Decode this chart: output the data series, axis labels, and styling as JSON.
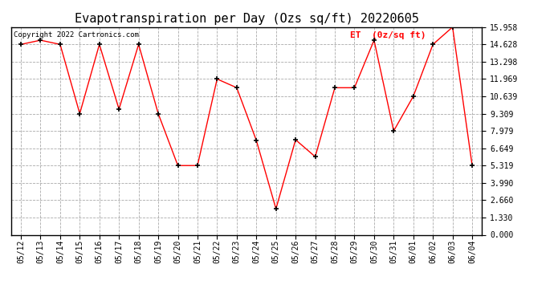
{
  "title": "Evapotranspiration per Day (Ozs sq/ft) 20220605",
  "copyright": "Copyright 2022 Cartronics.com",
  "legend_label": "ET  (0z/sq ft)",
  "dates": [
    "05/12",
    "05/13",
    "05/14",
    "05/15",
    "05/16",
    "05/17",
    "05/18",
    "05/19",
    "05/20",
    "05/21",
    "05/22",
    "05/23",
    "05/24",
    "05/25",
    "05/26",
    "05/27",
    "05/28",
    "05/29",
    "05/30",
    "05/31",
    "06/01",
    "06/02",
    "06/03",
    "06/04"
  ],
  "values": [
    14.628,
    14.95,
    14.628,
    9.309,
    14.628,
    9.65,
    14.628,
    9.309,
    5.319,
    5.319,
    11.969,
    11.3,
    7.25,
    1.995,
    7.3,
    6.0,
    11.3,
    11.3,
    14.95,
    7.979,
    10.639,
    14.628,
    15.958,
    5.319
  ],
  "line_color": "red",
  "marker": "+",
  "marker_color": "black",
  "background_color": "#ffffff",
  "grid_color": "#aaaaaa",
  "yticks": [
    0.0,
    1.33,
    2.66,
    3.99,
    5.319,
    6.649,
    7.979,
    9.309,
    10.639,
    11.969,
    13.298,
    14.628,
    15.958
  ],
  "ylim": [
    0.0,
    15.958
  ],
  "title_fontsize": 11,
  "tick_fontsize": 7,
  "copyright_fontsize": 6.5,
  "legend_fontsize": 8
}
